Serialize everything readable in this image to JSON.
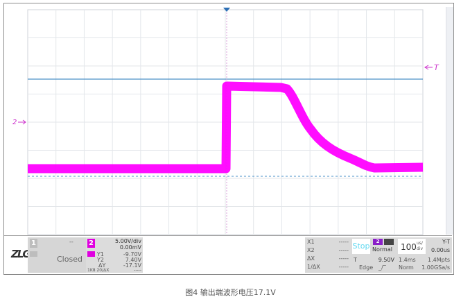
{
  "markers": {
    "channel2": "2",
    "trigger": "T"
  },
  "colors": {
    "trace": "#ff00ff",
    "trigger_level": "#4a90c8",
    "grid": "#e3e6ea",
    "text_magenta": "#cc33cc"
  },
  "brand": {
    "logo": "ZLG",
    "registered": "®"
  },
  "ch1": {
    "number": "1",
    "state": "Closed",
    "dash": "--"
  },
  "ch2": {
    "number": "2",
    "scale": "5.00V/div",
    "offset": "0.00mV",
    "y1_label": "Y1",
    "y1": "-9.70V",
    "y2_label": "Y2",
    "y2": "7.40V",
    "dy_label": "ΔY",
    "dy": "-17.1V",
    "coupling": "1K8 20/ΔX",
    "dy_inv": "-----"
  },
  "cursors": {
    "x1_label": "X1",
    "x2_label": "X2",
    "dx_label": "ΔX",
    "inv_dx_label": "1/ΔX",
    "x1": "-----",
    "x2": "-----",
    "dx": "-----",
    "inv_dx": "-----"
  },
  "trigger": {
    "run_state": "Stop",
    "source": "2",
    "mode": "Normal",
    "label": "T",
    "level": "9.50V",
    "type": "Edge"
  },
  "timebase": {
    "value": "100",
    "unit_top": "us/",
    "unit_bottom": "div",
    "mode": "Y-T",
    "delay": "0.00us",
    "memory_time": "1.4ms",
    "memory_points": "1.4Mpts",
    "acq": "Norm",
    "sample_rate": "1.00GSa/s"
  },
  "caption": "图4 输出端波形电压17.1V"
}
